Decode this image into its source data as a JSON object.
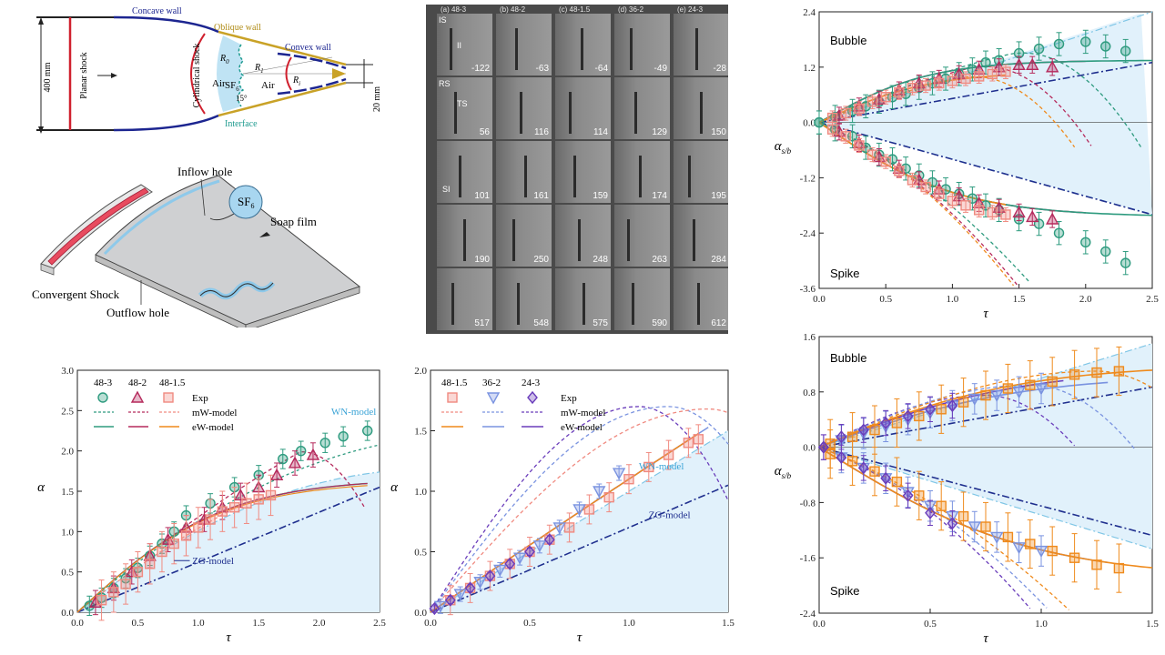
{
  "schematic": {
    "concave_wall": "Concave wall",
    "oblique_wall": "Oblique wall",
    "convex_wall": "Convex wall",
    "planar_shock": "Planar shock",
    "cylindrical_shock": "Cylindrical shock",
    "air_left": "Air",
    "air_right": "Air",
    "sf6": "SF",
    "sf6_sub": "6",
    "r0": "R",
    "r0_sub": "0",
    "r1": "R",
    "r1_sub": "1",
    "ri": "R",
    "ri_sub": "i",
    "angle": "15°",
    "interface": "Interface",
    "dim_left": "400 mm",
    "dim_right": "20 mm"
  },
  "device": {
    "inflow_hole": "Inflow hole",
    "sf6_bubble": "SF",
    "sf6_bubble_sub": "6",
    "soap_film": "Soap film",
    "convergent_shock": "Convergent Shock",
    "outflow_hole": "Outflow hole"
  },
  "frames": {
    "columns": [
      "(a) 48-3",
      "(b) 48-2",
      "(c) 48-1.5",
      "(d) 36-2",
      "(e) 24-3"
    ],
    "labels": [
      "IS",
      "II",
      "RS",
      "TS",
      "SI"
    ],
    "times": [
      [
        "-122",
        "-63",
        "-64",
        "-49",
        "-28"
      ],
      [
        "56",
        "116",
        "114",
        "129",
        "150"
      ],
      [
        "101",
        "161",
        "159",
        "174",
        "195"
      ],
      [
        "190",
        "250",
        "248",
        "263",
        "284"
      ],
      [
        "517",
        "548",
        "575",
        "590",
        "612"
      ]
    ]
  },
  "colors": {
    "green": "#2e9b7f",
    "crimson": "#b52a5c",
    "salmon": "#f08a80",
    "orange": "#ef8a1c",
    "blue": "#7a93e0",
    "purple": "#6a3dbb",
    "navy": "#1f2f8e",
    "lightblue": "#7fc6e6",
    "fill": "#e1f1fb",
    "wall_blue": "#1c2590",
    "wall_gold": "#c9a227",
    "shock_red": "#d0202e",
    "iface": "#1e9b8f"
  },
  "chart_data": [
    {
      "id": "d",
      "type": "scatter",
      "ylabel": "α",
      "ylabel_sub": "s/b",
      "xlabel": "τ",
      "xlim": [
        0,
        2.5
      ],
      "ylim": [
        -3.6,
        2.4
      ],
      "xticks": [
        "0.0",
        "0.5",
        "1.0",
        "1.5",
        "2.0",
        "2.5"
      ],
      "yticks": [
        "-3.6",
        "-2.4",
        "-1.2",
        "0.0",
        "1.2",
        "2.4"
      ],
      "annotations": [
        "Bubble",
        "Spike"
      ],
      "series": [
        {
          "marker": "circle",
          "color": "#2e9b7f",
          "x": [
            0.0,
            0.12,
            0.25,
            0.35,
            0.45,
            0.55,
            0.65,
            0.75,
            0.85,
            0.95,
            1.05,
            1.15,
            1.25,
            1.35,
            1.5,
            1.65,
            1.8,
            2.0,
            2.15,
            2.3
          ],
          "bubble": [
            0.0,
            0.12,
            0.25,
            0.35,
            0.45,
            0.55,
            0.62,
            0.75,
            0.85,
            0.95,
            1.05,
            1.15,
            1.3,
            1.35,
            1.5,
            1.6,
            1.7,
            1.75,
            1.65,
            1.55
          ],
          "spike": [
            0.0,
            -0.15,
            -0.3,
            -0.55,
            -0.7,
            -0.8,
            -1.0,
            -1.15,
            -1.3,
            -1.45,
            -1.55,
            -1.65,
            -1.8,
            -1.9,
            -2.1,
            -2.2,
            -2.4,
            -2.6,
            -2.8,
            -3.05
          ],
          "err": 0.25
        },
        {
          "marker": "triangle",
          "color": "#b52a5c",
          "x": [
            0.15,
            0.3,
            0.45,
            0.6,
            0.75,
            0.9,
            1.05,
            1.2,
            1.35,
            1.5,
            1.6,
            1.75
          ],
          "bubble": [
            0.15,
            0.35,
            0.5,
            0.7,
            0.85,
            0.95,
            1.05,
            1.15,
            1.2,
            1.25,
            1.25,
            1.2
          ],
          "spike": [
            -0.2,
            -0.45,
            -0.75,
            -1.0,
            -1.25,
            -1.45,
            -1.6,
            -1.75,
            -1.85,
            -1.95,
            -2.05,
            -2.1
          ],
          "err": 0.18
        },
        {
          "marker": "square",
          "color": "#f08a80",
          "x": [
            0.1,
            0.2,
            0.3,
            0.4,
            0.5,
            0.6,
            0.7,
            0.8,
            0.9,
            1.0,
            1.1,
            1.2,
            1.3,
            1.4
          ],
          "bubble": [
            0.1,
            0.2,
            0.3,
            0.45,
            0.55,
            0.65,
            0.75,
            0.8,
            0.85,
            0.9,
            0.95,
            1.0,
            1.05,
            1.1
          ],
          "spike": [
            -0.15,
            -0.3,
            -0.5,
            -0.7,
            -0.85,
            -1.05,
            -1.25,
            -1.4,
            -1.55,
            -1.7,
            -1.8,
            -1.9,
            -1.95,
            -2.0
          ],
          "err": 0.15
        }
      ]
    },
    {
      "id": "e",
      "type": "scatter",
      "ylabel": "α",
      "ylabel_sub": "s/b",
      "xlabel": "τ",
      "xlim": [
        0,
        1.5
      ],
      "ylim": [
        -2.4,
        1.6
      ],
      "xticks": [
        "0.0",
        "0.5",
        "1.0",
        "1.5"
      ],
      "yticks": [
        "-2.4",
        "-1.6",
        "-0.8",
        "0.0",
        "0.8",
        "1.6"
      ],
      "annotations": [
        "Bubble",
        "Spike"
      ],
      "series": [
        {
          "marker": "square",
          "color": "#ef8a1c",
          "x": [
            0.05,
            0.15,
            0.25,
            0.35,
            0.45,
            0.55,
            0.65,
            0.75,
            0.85,
            0.95,
            1.05,
            1.15,
            1.25,
            1.35
          ],
          "bubble": [
            0.05,
            0.15,
            0.25,
            0.35,
            0.45,
            0.55,
            0.65,
            0.75,
            0.85,
            0.9,
            0.95,
            1.05,
            1.08,
            1.1
          ],
          "spike": [
            -0.1,
            -0.2,
            -0.35,
            -0.5,
            -0.7,
            -0.85,
            -1.0,
            -1.15,
            -1.3,
            -1.4,
            -1.5,
            -1.6,
            -1.7,
            -1.75
          ],
          "err": 0.35
        },
        {
          "marker": "triangle-down",
          "color": "#7a93e0",
          "x": [
            0.1,
            0.2,
            0.3,
            0.4,
            0.5,
            0.6,
            0.7,
            0.8,
            0.9,
            1.0
          ],
          "bubble": [
            0.1,
            0.2,
            0.3,
            0.4,
            0.5,
            0.6,
            0.7,
            0.75,
            0.8,
            0.85
          ],
          "spike": [
            -0.15,
            -0.3,
            -0.45,
            -0.65,
            -0.85,
            -1.0,
            -1.15,
            -1.3,
            -1.45,
            -1.5
          ],
          "err": 0.22
        },
        {
          "marker": "diamond",
          "color": "#6a3dbb",
          "x": [
            0.02,
            0.1,
            0.2,
            0.3,
            0.4,
            0.5,
            0.6
          ],
          "bubble": [
            0.0,
            0.15,
            0.25,
            0.35,
            0.45,
            0.55,
            0.6
          ],
          "spike": [
            0.0,
            -0.15,
            -0.3,
            -0.45,
            -0.7,
            -0.95,
            -1.1
          ],
          "err": 0.18
        }
      ]
    },
    {
      "id": "f",
      "type": "scatter",
      "ylabel": "α",
      "xlabel": "τ",
      "xlim": [
        0,
        2.5
      ],
      "ylim": [
        0,
        3.0
      ],
      "xticks": [
        "0.0",
        "0.5",
        "1.0",
        "1.5",
        "2.0",
        "2.5"
      ],
      "yticks": [
        "0.0",
        "0.5",
        "1.0",
        "1.5",
        "2.0",
        "2.5",
        "3.0"
      ],
      "legend": {
        "cols": [
          "48-3",
          "48-2",
          "48-1.5"
        ],
        "rows": [
          "Exp",
          "mW-model",
          "eW-model"
        ]
      },
      "model_labels": [
        "WN-model",
        "ZG-model"
      ],
      "series": [
        {
          "marker": "circle",
          "color": "#2e9b7f",
          "x": [
            0.1,
            0.2,
            0.3,
            0.4,
            0.5,
            0.6,
            0.7,
            0.8,
            0.9,
            1.1,
            1.3,
            1.5,
            1.7,
            1.85,
            2.05,
            2.2,
            2.4
          ],
          "values": [
            0.08,
            0.18,
            0.3,
            0.42,
            0.55,
            0.7,
            0.85,
            1.0,
            1.2,
            1.35,
            1.55,
            1.7,
            1.9,
            2.0,
            2.1,
            2.18,
            2.25
          ],
          "err": 0.12
        },
        {
          "marker": "triangle",
          "color": "#b52a5c",
          "x": [
            0.15,
            0.3,
            0.45,
            0.6,
            0.75,
            0.9,
            1.05,
            1.2,
            1.35,
            1.5,
            1.65,
            1.8,
            1.95
          ],
          "values": [
            0.12,
            0.3,
            0.5,
            0.7,
            0.9,
            1.05,
            1.15,
            1.3,
            1.45,
            1.55,
            1.7,
            1.85,
            1.95
          ],
          "err": 0.15
        },
        {
          "marker": "square",
          "color": "#f08a80",
          "x": [
            0.2,
            0.3,
            0.4,
            0.5,
            0.6,
            0.7,
            0.8,
            0.9,
            1.0,
            1.1,
            1.2,
            1.3,
            1.4,
            1.5,
            1.6
          ],
          "values": [
            0.15,
            0.25,
            0.35,
            0.5,
            0.6,
            0.75,
            0.85,
            0.95,
            1.05,
            1.15,
            1.25,
            1.3,
            1.35,
            1.4,
            1.45
          ],
          "err": 0.25
        }
      ]
    },
    {
      "id": "g",
      "type": "scatter",
      "ylabel": "α",
      "xlabel": "τ",
      "xlim": [
        0,
        1.5
      ],
      "ylim": [
        0,
        2.0
      ],
      "xticks": [
        "0.0",
        "0.5",
        "1.0",
        "1.5"
      ],
      "yticks": [
        "0.0",
        "0.5",
        "1.0",
        "1.5",
        "2.0"
      ],
      "legend": {
        "cols": [
          "48-1.5",
          "36-2",
          "24-3"
        ],
        "rows": [
          "Exp",
          "mW-model",
          "eW-model"
        ]
      },
      "model_labels": [
        "WN-model",
        "ZG-model"
      ],
      "series": [
        {
          "marker": "square",
          "color": "#f08a80",
          "x": [
            0.1,
            0.2,
            0.3,
            0.4,
            0.5,
            0.6,
            0.7,
            0.8,
            0.9,
            1.0,
            1.1,
            1.2,
            1.3,
            1.35
          ],
          "values": [
            0.1,
            0.2,
            0.3,
            0.4,
            0.5,
            0.6,
            0.7,
            0.85,
            0.95,
            1.1,
            1.2,
            1.3,
            1.4,
            1.43
          ],
          "err": 0.12
        },
        {
          "marker": "triangle-down",
          "color": "#7a93e0",
          "x": [
            0.05,
            0.15,
            0.25,
            0.35,
            0.45,
            0.55,
            0.65,
            0.75,
            0.85,
            0.95
          ],
          "values": [
            0.05,
            0.15,
            0.25,
            0.35,
            0.45,
            0.55,
            0.7,
            0.85,
            1.0,
            1.15
          ],
          "err": 0.06
        },
        {
          "marker": "diamond",
          "color": "#6a3dbb",
          "x": [
            0.02,
            0.1,
            0.2,
            0.3,
            0.4,
            0.5,
            0.6
          ],
          "values": [
            0.03,
            0.1,
            0.2,
            0.3,
            0.4,
            0.5,
            0.6
          ],
          "err": 0.03
        }
      ]
    }
  ]
}
